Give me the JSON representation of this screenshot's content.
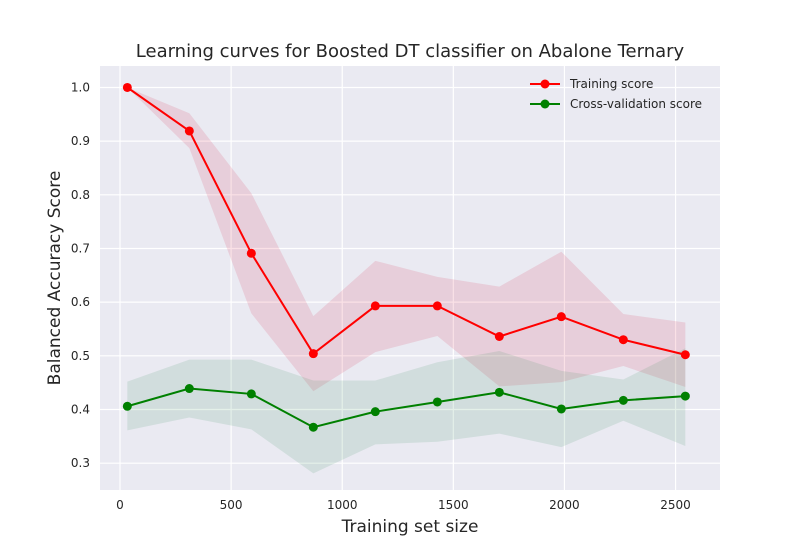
{
  "chart_data": {
    "type": "line",
    "title": "Learning curves for Boosted DT classifier on Abalone Ternary",
    "xlabel": "Training set size",
    "ylabel": "Balanced Accuracy Score",
    "xlim": [
      -90,
      2700
    ],
    "ylim": [
      0.25,
      1.04
    ],
    "xticks": [
      0,
      500,
      1000,
      1500,
      2000,
      2500
    ],
    "xtick_labels": [
      "0",
      "500",
      "1000",
      "1500",
      "2000",
      "2500"
    ],
    "yticks": [
      0.3,
      0.4,
      0.5,
      0.6,
      0.7,
      0.8,
      0.9,
      1.0
    ],
    "ytick_labels": [
      "0.3",
      "0.4",
      "0.5",
      "0.6",
      "0.7",
      "0.8",
      "0.9",
      "1.0"
    ],
    "grid": true,
    "legend_position": "top-right",
    "x": [
      33,
      312,
      591,
      870,
      1149,
      1428,
      1707,
      1986,
      2265,
      2544
    ],
    "series": [
      {
        "name": "Training score",
        "color": "#ff0000",
        "band_color": "#dc143c",
        "values": [
          1.0,
          0.919,
          0.691,
          0.504,
          0.593,
          0.593,
          0.536,
          0.573,
          0.53,
          0.502
        ],
        "upper": [
          1.0,
          0.952,
          0.803,
          0.574,
          0.677,
          0.647,
          0.629,
          0.694,
          0.578,
          0.562
        ],
        "lower": [
          1.0,
          0.887,
          0.579,
          0.434,
          0.507,
          0.537,
          0.443,
          0.451,
          0.481,
          0.442
        ]
      },
      {
        "name": "Cross-validation score",
        "color": "#008000",
        "band_color": "#2e8b57",
        "values": [
          0.406,
          0.439,
          0.429,
          0.367,
          0.396,
          0.414,
          0.432,
          0.401,
          0.417,
          0.425
        ],
        "upper": [
          0.452,
          0.493,
          0.493,
          0.454,
          0.454,
          0.488,
          0.509,
          0.472,
          0.456,
          0.514
        ],
        "lower": [
          0.361,
          0.385,
          0.363,
          0.281,
          0.335,
          0.34,
          0.355,
          0.33,
          0.379,
          0.332
        ]
      }
    ]
  }
}
